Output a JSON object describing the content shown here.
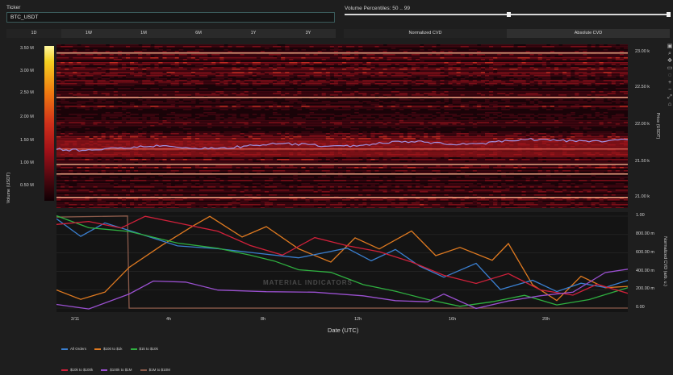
{
  "ticker": {
    "label": "Ticker",
    "value": "BTC_USDT"
  },
  "volume_percentiles": {
    "label": "Volume Percentiles: 50 .. 99",
    "low": 50,
    "high": 99
  },
  "range_buttons": [
    "1D",
    "1W",
    "1M",
    "6M",
    "1Y",
    "3Y"
  ],
  "cvd_tabs": [
    "Normalized CVD",
    "Absolute CVD"
  ],
  "heatmap": {
    "colorbar_title": "Volume (USDT)",
    "colorbar_ticks": [
      "3.50 M",
      "3.00 M",
      "2.50 M",
      "2.00 M",
      "1.50 M",
      "1.00 M",
      "0.50 M"
    ],
    "price_axis_title": "Price (USDT)",
    "price_ticks": [
      "23.00 k",
      "22.50 k",
      "22.00 k",
      "21.50 k",
      "21.00 k"
    ]
  },
  "cvd": {
    "axis_title": "Normalized CVD (arb. u.)",
    "y_ticks": [
      "1.00",
      "800.00 m",
      "600.00 m",
      "400.00 m",
      "200.00 m",
      "0.00"
    ],
    "x_title": "Date (UTC)",
    "x_ticks": [
      "2/11",
      "4h",
      "8h",
      "12h",
      "16h",
      "20h"
    ],
    "watermark": "MATERIAL INDICATORS"
  },
  "legend": {
    "row1": [
      {
        "label": "All Orders",
        "color": "#3a7fd0"
      },
      {
        "label": "$100 to $1k",
        "color": "#e07a20"
      },
      {
        "label": "$1k to $10k",
        "color": "#2fb040"
      }
    ],
    "row2": [
      {
        "label": "$10k to $100k",
        "color": "#d0203a"
      },
      {
        "label": "$100k to $1M",
        "color": "#9a50d0"
      },
      {
        "label": "$1M to $10M",
        "color": "#8a5a4a"
      }
    ]
  },
  "colors": {
    "background": "#1e1e1e",
    "series_all": "#3a7fd0",
    "series_100_1k": "#e07a20",
    "series_1k_10k": "#2fb040",
    "series_10k_100k": "#d0203a",
    "series_100k_1m": "#9a50d0",
    "series_1m_10m": "#8a5a4a"
  }
}
